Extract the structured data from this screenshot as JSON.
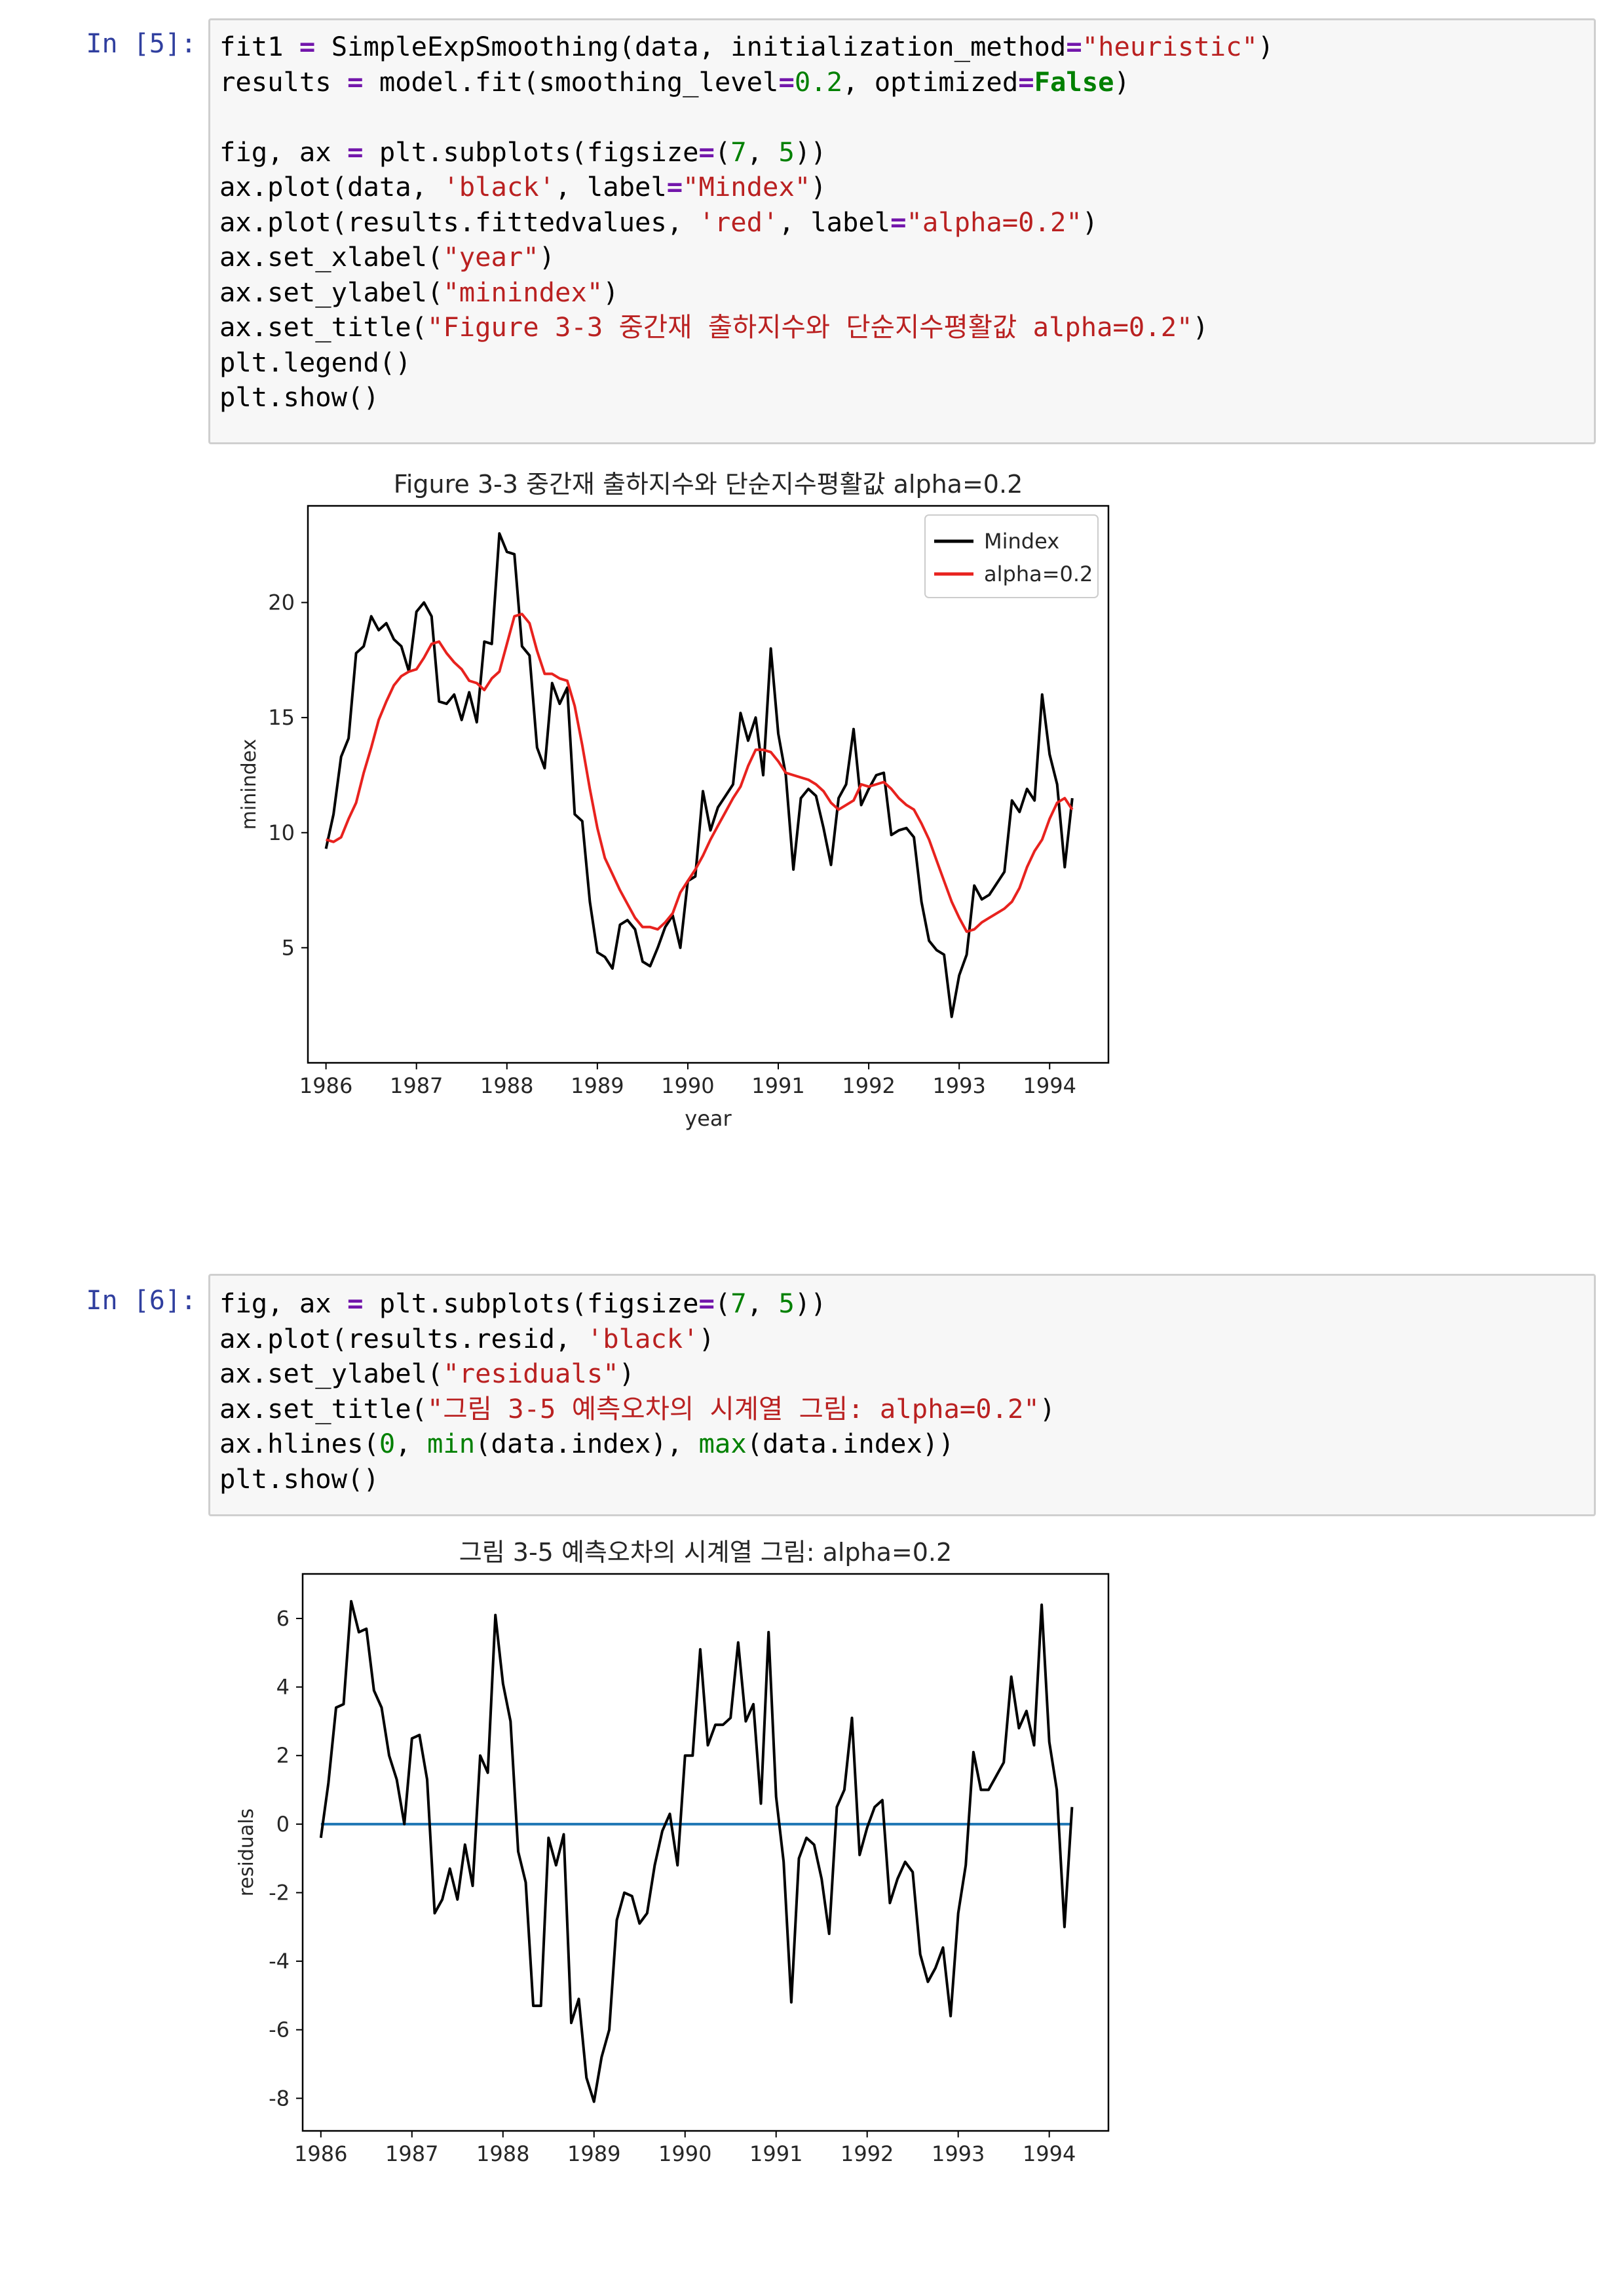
{
  "cells": [
    {
      "prompt": "In [5]:",
      "code_lines": [
        "fit1 = SimpleExpSmoothing(data, initialization_method=\"heuristic\")",
        "results = model.fit(smoothing_level=0.2, optimized=False)",
        "",
        "fig, ax = plt.subplots(figsize=(7, 5))",
        "ax.plot(data, 'black', label=\"Mindex\")",
        "ax.plot(results.fittedvalues, 'red', label=\"alpha=0.2\")",
        "ax.set_xlabel(\"year\")",
        "ax.set_ylabel(\"minindex\")",
        "ax.set_title(\"Figure 3-3 중간재 출하지수와 단순지수평활값 alpha=0.2\")",
        "plt.legend()",
        "plt.show()"
      ]
    },
    {
      "prompt": "In [6]:",
      "code_lines": [
        "fig, ax = plt.subplots(figsize=(7, 5))",
        "ax.plot(results.resid, 'black')",
        "ax.set_ylabel(\"residuals\")",
        "ax.set_title(\"그림 3-5 예측오차의 시계열 그림: alpha=0.2\")",
        "ax.hlines(0, min(data.index), max(data.index))",
        "plt.show()"
      ]
    }
  ],
  "chart_data": [
    {
      "type": "line",
      "title": "Figure 3-3 중간재 출하지수와 단순지수평활값 alpha=0.2",
      "xlabel": "year",
      "ylabel": "minindex",
      "xlim": [
        1985.8,
        1994.65
      ],
      "ylim": [
        0.0,
        24.2
      ],
      "xticks": [
        1986,
        1987,
        1988,
        1989,
        1990,
        1991,
        1992,
        1993,
        1994
      ],
      "yticks": [
        5,
        10,
        15,
        20
      ],
      "legend": "top-right",
      "colors": {
        "Mindex": "#000000",
        "alpha=0.2": "#e8221e"
      },
      "series": [
        {
          "name": "Mindex",
          "x": [
            1986.0,
            1986.083,
            1986.167,
            1986.25,
            1986.333,
            1986.417,
            1986.5,
            1986.583,
            1986.667,
            1986.75,
            1986.833,
            1986.917,
            1987.0,
            1987.083,
            1987.167,
            1987.25,
            1987.333,
            1987.417,
            1987.5,
            1987.583,
            1987.667,
            1987.75,
            1987.833,
            1987.917,
            1988.0,
            1988.083,
            1988.167,
            1988.25,
            1988.333,
            1988.417,
            1988.5,
            1988.583,
            1988.667,
            1988.75,
            1988.833,
            1988.917,
            1989.0,
            1989.083,
            1989.167,
            1989.25,
            1989.333,
            1989.417,
            1989.5,
            1989.583,
            1989.667,
            1989.75,
            1989.833,
            1989.917,
            1990.0,
            1990.083,
            1990.167,
            1990.25,
            1990.333,
            1990.417,
            1990.5,
            1990.583,
            1990.667,
            1990.75,
            1990.833,
            1990.917,
            1991.0,
            1991.083,
            1991.167,
            1991.25,
            1991.333,
            1991.417,
            1991.5,
            1991.583,
            1991.667,
            1991.75,
            1991.833,
            1991.917,
            1992.0,
            1992.083,
            1992.167,
            1992.25,
            1992.333,
            1992.417,
            1992.5,
            1992.583,
            1992.667,
            1992.75,
            1992.833,
            1992.917,
            1993.0,
            1993.083,
            1993.167,
            1993.25,
            1993.333,
            1993.417,
            1993.5,
            1993.583,
            1993.667,
            1993.75,
            1993.833,
            1993.917,
            1994.0,
            1994.083,
            1994.167,
            1994.25
          ],
          "y": [
            9.3,
            10.8,
            13.3,
            14.1,
            17.8,
            18.1,
            19.4,
            18.8,
            19.1,
            18.4,
            18.1,
            17.0,
            19.6,
            20.0,
            19.4,
            15.7,
            15.6,
            16.0,
            14.9,
            16.1,
            14.8,
            18.3,
            18.2,
            23.0,
            22.2,
            22.1,
            18.1,
            17.7,
            13.7,
            12.8,
            16.5,
            15.6,
            16.3,
            10.8,
            10.5,
            7.0,
            4.8,
            4.6,
            4.1,
            6.0,
            6.2,
            5.8,
            4.4,
            4.2,
            5.0,
            5.9,
            6.4,
            5.0,
            7.9,
            8.1,
            11.8,
            10.1,
            11.1,
            11.6,
            12.1,
            15.2,
            14.0,
            15.0,
            12.5,
            18.0,
            14.3,
            12.5,
            8.4,
            11.5,
            11.9,
            11.6,
            10.2,
            8.6,
            11.5,
            12.1,
            14.5,
            11.2,
            11.9,
            12.5,
            12.6,
            9.9,
            10.1,
            10.2,
            9.8,
            7.0,
            5.3,
            4.9,
            4.7,
            2.0,
            3.8,
            4.7,
            7.7,
            7.1,
            7.3,
            7.8,
            8.3,
            11.4,
            10.9,
            11.9,
            11.4,
            16.0,
            13.4,
            12.1,
            8.5,
            11.5
          ]
        },
        {
          "name": "alpha=0.2",
          "x": [
            1986.0,
            1986.083,
            1986.167,
            1986.25,
            1986.333,
            1986.417,
            1986.5,
            1986.583,
            1986.667,
            1986.75,
            1986.833,
            1986.917,
            1987.0,
            1987.083,
            1987.167,
            1987.25,
            1987.333,
            1987.417,
            1987.5,
            1987.583,
            1987.667,
            1987.75,
            1987.833,
            1987.917,
            1988.0,
            1988.083,
            1988.167,
            1988.25,
            1988.333,
            1988.417,
            1988.5,
            1988.583,
            1988.667,
            1988.75,
            1988.833,
            1988.917,
            1989.0,
            1989.083,
            1989.167,
            1989.25,
            1989.333,
            1989.417,
            1989.5,
            1989.583,
            1989.667,
            1989.75,
            1989.833,
            1989.917,
            1990.0,
            1990.083,
            1990.167,
            1990.25,
            1990.333,
            1990.417,
            1990.5,
            1990.583,
            1990.667,
            1990.75,
            1990.833,
            1990.917,
            1991.0,
            1991.083,
            1991.167,
            1991.25,
            1991.333,
            1991.417,
            1991.5,
            1991.583,
            1991.667,
            1991.75,
            1991.833,
            1991.917,
            1992.0,
            1992.083,
            1992.167,
            1992.25,
            1992.333,
            1992.417,
            1992.5,
            1992.583,
            1992.667,
            1992.75,
            1992.833,
            1992.917,
            1993.0,
            1993.083,
            1993.167,
            1993.25,
            1993.333,
            1993.417,
            1993.5,
            1993.583,
            1993.667,
            1993.75,
            1993.833,
            1993.917,
            1994.0,
            1994.083,
            1994.167,
            1994.25
          ],
          "y": [
            9.7,
            9.6,
            9.8,
            10.6,
            11.3,
            12.6,
            13.7,
            14.9,
            15.7,
            16.4,
            16.8,
            17.0,
            17.1,
            17.6,
            18.2,
            18.3,
            17.8,
            17.4,
            17.1,
            16.6,
            16.5,
            16.2,
            16.7,
            17.0,
            18.2,
            19.4,
            19.5,
            19.1,
            17.9,
            16.9,
            16.9,
            16.7,
            16.6,
            15.5,
            13.8,
            11.9,
            10.2,
            8.9,
            8.2,
            7.5,
            6.9,
            6.3,
            5.9,
            5.9,
            5.8,
            6.1,
            6.5,
            7.4,
            7.9,
            8.4,
            9.0,
            9.7,
            10.3,
            10.9,
            11.5,
            12.0,
            12.9,
            13.6,
            13.6,
            13.5,
            13.1,
            12.6,
            12.5,
            12.4,
            12.3,
            12.1,
            11.8,
            11.3,
            11.0,
            11.2,
            11.4,
            12.1,
            12.0,
            12.1,
            12.2,
            11.9,
            11.5,
            11.2,
            11.0,
            10.4,
            9.7,
            8.8,
            7.9,
            7.0,
            6.3,
            5.7,
            5.8,
            6.1,
            6.3,
            6.5,
            6.7,
            7.0,
            7.6,
            8.5,
            9.2,
            9.7,
            10.6,
            11.3,
            11.5,
            11.0
          ]
        }
      ]
    },
    {
      "type": "line",
      "title": "그림 3-5 예측오차의 시계열 그림: alpha=0.2",
      "xlabel": "",
      "ylabel": "residuals",
      "xlim": [
        1985.8,
        1994.65
      ],
      "ylim": [
        -8.95,
        7.3
      ],
      "xticks": [
        1986,
        1987,
        1988,
        1989,
        1990,
        1991,
        1992,
        1993,
        1994
      ],
      "yticks": [
        -8,
        -6,
        -4,
        -2,
        0,
        2,
        4,
        6
      ],
      "colors": {
        "residuals": "#000000",
        "hline": "#1f77b4"
      },
      "hline": {
        "y": 0,
        "x_from": 1986.0,
        "x_to": 1994.25
      },
      "series": [
        {
          "x": [
            1986.0,
            1986.083,
            1986.167,
            1986.25,
            1986.333,
            1986.417,
            1986.5,
            1986.583,
            1986.667,
            1986.75,
            1986.833,
            1986.917,
            1987.0,
            1987.083,
            1987.167,
            1987.25,
            1987.333,
            1987.417,
            1987.5,
            1987.583,
            1987.667,
            1987.75,
            1987.833,
            1987.917,
            1988.0,
            1988.083,
            1988.167,
            1988.25,
            1988.333,
            1988.417,
            1988.5,
            1988.583,
            1988.667,
            1988.75,
            1988.833,
            1988.917,
            1989.0,
            1989.083,
            1989.167,
            1989.25,
            1989.333,
            1989.417,
            1989.5,
            1989.583,
            1989.667,
            1989.75,
            1989.833,
            1989.917,
            1990.0,
            1990.083,
            1990.167,
            1990.25,
            1990.333,
            1990.417,
            1990.5,
            1990.583,
            1990.667,
            1990.75,
            1990.833,
            1990.917,
            1991.0,
            1991.083,
            1991.167,
            1991.25,
            1991.333,
            1991.417,
            1991.5,
            1991.583,
            1991.667,
            1991.75,
            1991.833,
            1991.917,
            1992.0,
            1992.083,
            1992.167,
            1992.25,
            1992.333,
            1992.417,
            1992.5,
            1992.583,
            1992.667,
            1992.75,
            1992.833,
            1992.917,
            1993.0,
            1993.083,
            1993.167,
            1993.25,
            1993.333,
            1993.417,
            1993.5,
            1993.583,
            1993.667,
            1993.75,
            1993.833,
            1993.917,
            1994.0,
            1994.083,
            1994.167,
            1994.25
          ],
          "y": [
            -0.4,
            1.2,
            3.4,
            3.5,
            6.5,
            5.6,
            5.7,
            3.9,
            3.4,
            2.0,
            1.3,
            0.0,
            2.5,
            2.6,
            1.3,
            -2.6,
            -2.2,
            -1.3,
            -2.2,
            -0.6,
            -1.8,
            2.0,
            1.5,
            6.1,
            4.1,
            3.0,
            -0.8,
            -1.7,
            -5.3,
            -5.3,
            -0.4,
            -1.2,
            -0.3,
            -5.8,
            -5.1,
            -7.4,
            -8.1,
            -6.8,
            -6.0,
            -2.8,
            -2.0,
            -2.1,
            -2.9,
            -2.6,
            -1.2,
            -0.2,
            0.3,
            -1.2,
            2.0,
            2.0,
            5.1,
            2.3,
            2.9,
            2.9,
            3.1,
            5.3,
            3.0,
            3.5,
            0.6,
            5.6,
            0.8,
            -1.1,
            -5.2,
            -1.0,
            -0.4,
            -0.6,
            -1.6,
            -3.2,
            0.5,
            1.0,
            3.1,
            -0.9,
            -0.1,
            0.5,
            0.7,
            -2.3,
            -1.6,
            -1.1,
            -1.4,
            -3.8,
            -4.6,
            -4.2,
            -3.6,
            -5.6,
            -2.6,
            -1.2,
            2.1,
            1.0,
            1.0,
            1.4,
            1.8,
            4.3,
            2.8,
            3.3,
            2.3,
            6.4,
            2.4,
            1.0,
            -3.0,
            0.5
          ]
        }
      ]
    }
  ]
}
